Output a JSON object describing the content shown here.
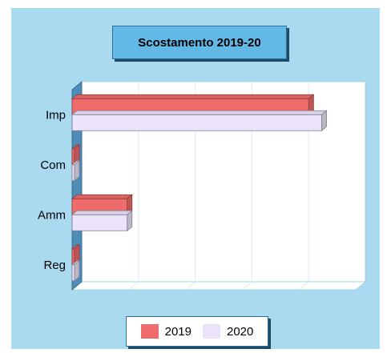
{
  "chart_data": {
    "type": "bar",
    "orientation": "horizontal",
    "title": "Scostamento 2019-20",
    "categories": [
      "Imp",
      "Com",
      "Amm",
      "Reg"
    ],
    "series": [
      {
        "name": "2019",
        "color": "#f06b6b",
        "values": [
          2920,
          0,
          680,
          0
        ]
      },
      {
        "name": "2020",
        "color": "#ebe3fb",
        "values": [
          3080,
          0,
          680,
          0
        ]
      }
    ],
    "xlim": [
      0,
      3500
    ],
    "grid": true,
    "legend_position": "bottom",
    "style": "3d"
  }
}
